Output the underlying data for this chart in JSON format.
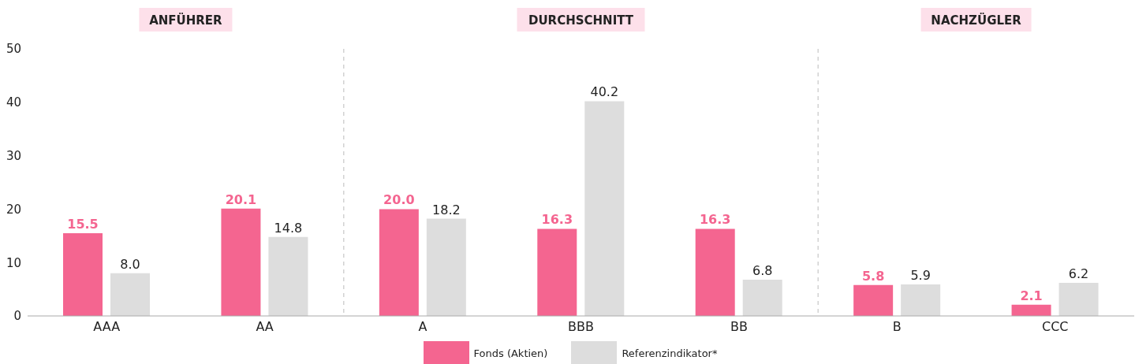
{
  "chart_data": {
    "type": "bar",
    "categories": [
      "AAA",
      "AA",
      "A",
      "BBB",
      "BB",
      "B",
      "CCC"
    ],
    "series": [
      {
        "name": "Fonds (Aktien)",
        "color": "#f46590",
        "values": [
          15.5,
          20.1,
          20.0,
          16.3,
          16.3,
          5.8,
          2.1
        ],
        "value_labels": [
          "15.5",
          "20.1",
          "20.0",
          "16.3",
          "16.3",
          "5.8",
          "2.1"
        ]
      },
      {
        "name": "Referenzindikator*",
        "color": "#dddddd",
        "values": [
          8.0,
          14.8,
          18.2,
          40.2,
          6.8,
          5.9,
          6.2
        ],
        "value_labels": [
          "8.0",
          "14.8",
          "18.2",
          "40.2",
          "6.8",
          "5.9",
          "6.2"
        ]
      }
    ],
    "ylim": [
      0,
      50
    ],
    "yticks": [
      0,
      10,
      20,
      30,
      40,
      50
    ],
    "legend": "bottom",
    "annotations": [
      "ANFÜHRER",
      "DURCHSCHNITT",
      "NACHZÜGLER"
    ]
  }
}
